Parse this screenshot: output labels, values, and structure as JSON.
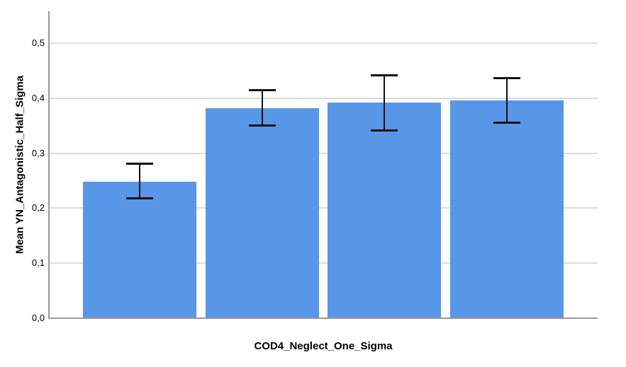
{
  "chart_data": {
    "type": "bar",
    "title": "",
    "xlabel": "COD4_Neglect_One_Sigma",
    "ylabel": "Mean YN_Antagonistic_Half_Sigma",
    "categories": [
      "",
      "",
      "",
      ""
    ],
    "values": [
      0.248,
      0.382,
      0.392,
      0.396
    ],
    "error_bars": {
      "low": [
        0.217,
        0.349,
        0.341,
        0.355
      ],
      "high": [
        0.281,
        0.415,
        0.442,
        0.437
      ]
    },
    "ylim": [
      0.0,
      0.55
    ],
    "yticks": [
      0.0,
      0.1,
      0.2,
      0.3,
      0.4,
      0.5
    ],
    "ytick_labels": [
      "0,0",
      "0,1",
      "0,2",
      "0,3",
      "0,4",
      "0,5"
    ],
    "xtick_labels_visible": false,
    "grid": "horizontal",
    "legend": "none",
    "decimal_separator": ",",
    "colors": {
      "bar": "#5896E8",
      "gridline": "#DCDCDC",
      "axis": "#999999",
      "error_bar": "#111111",
      "text": "#000000",
      "background": "#FFFFFF"
    }
  }
}
